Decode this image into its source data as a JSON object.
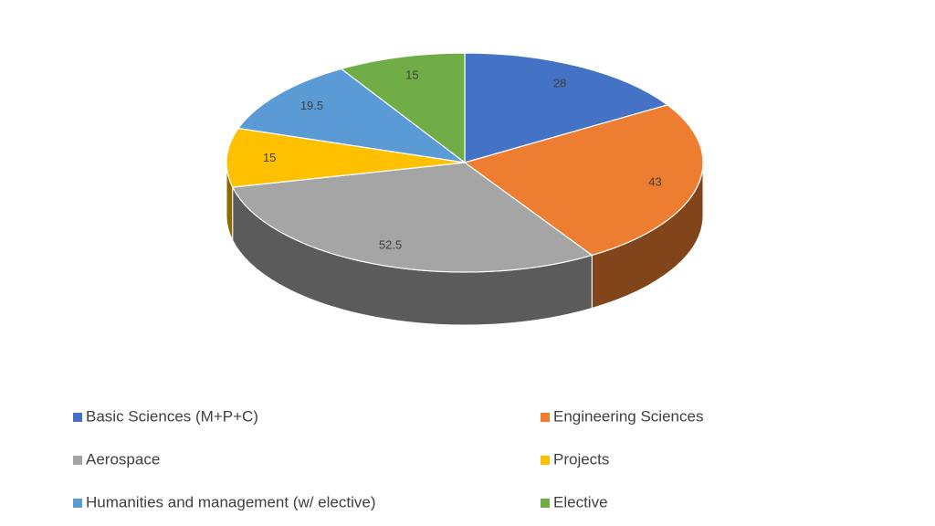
{
  "chart_data": {
    "type": "pie",
    "categories": [
      "Basic Sciences (M+P+C)",
      "Engineering Sciences",
      "Aerospace",
      "Projects",
      "Humanities and management (w/ elective)",
      "Elective"
    ],
    "values": [
      28,
      43,
      52.5,
      15,
      19.5,
      15
    ],
    "colors": [
      "#4472c4",
      "#ed7d31",
      "#a5a5a5",
      "#ffc000",
      "#5b9bd5",
      "#70ad47"
    ],
    "legend": "bottom"
  }
}
